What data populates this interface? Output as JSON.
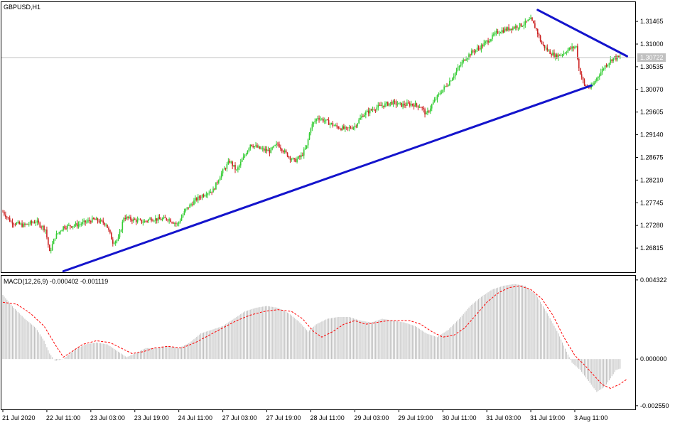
{
  "chart_data": {
    "type": "candlestick",
    "symbol_label": "GBPUSD,H1",
    "current_price": 1.30722,
    "current_price_label": "1.30722",
    "price_axis": {
      "ticks": [
        "1.31465",
        "1.31000",
        "1.30535",
        "1.30070",
        "1.29605",
        "1.29140",
        "1.28675",
        "1.28210",
        "1.27745",
        "1.27280",
        "1.26815"
      ],
      "range": [
        1.2632,
        1.3186
      ]
    },
    "time_axis": {
      "labels": [
        "21 Jul 2020",
        "22 Jul 11:00",
        "23 Jul 03:00",
        "23 Jul 19:00",
        "24 Jul 11:00",
        "27 Jul 03:00",
        "27 Jul 19:00",
        "28 Jul 11:00",
        "29 Jul 03:00",
        "29 Jul 19:00",
        "30 Jul 11:00",
        "31 Jul 03:00",
        "31 Jul 19:00",
        "3 Aug 11:00"
      ]
    },
    "price_path": [
      [
        0,
        1.2756
      ],
      [
        6,
        1.2735
      ],
      [
        15,
        1.2728
      ],
      [
        24,
        1.2736
      ],
      [
        31,
        1.272
      ],
      [
        34,
        1.2672
      ],
      [
        38,
        1.2705
      ],
      [
        44,
        1.2725
      ],
      [
        55,
        1.273
      ],
      [
        66,
        1.274
      ],
      [
        75,
        1.2732
      ],
      [
        80,
        1.2694
      ],
      [
        84,
        1.27
      ],
      [
        88,
        1.2745
      ],
      [
        94,
        1.274
      ],
      [
        102,
        1.2735
      ],
      [
        108,
        1.2742
      ],
      [
        114,
        1.274
      ],
      [
        120,
        1.2742
      ],
      [
        127,
        1.273
      ],
      [
        133,
        1.276
      ],
      [
        140,
        1.278
      ],
      [
        148,
        1.2795
      ],
      [
        153,
        1.28
      ],
      [
        158,
        1.283
      ],
      [
        165,
        1.286
      ],
      [
        170,
        1.284
      ],
      [
        176,
        1.2872
      ],
      [
        180,
        1.2895
      ],
      [
        187,
        1.2885
      ],
      [
        194,
        1.288
      ],
      [
        200,
        1.2895
      ],
      [
        206,
        1.2875
      ],
      [
        212,
        1.286
      ],
      [
        217,
        1.287
      ],
      [
        221,
        1.289
      ],
      [
        224,
        1.293
      ],
      [
        229,
        1.295
      ],
      [
        236,
        1.294
      ],
      [
        243,
        1.293
      ],
      [
        250,
        1.2925
      ],
      [
        256,
        1.2932
      ],
      [
        262,
        1.2955
      ],
      [
        270,
        1.2968
      ],
      [
        277,
        1.2975
      ],
      [
        283,
        1.298
      ],
      [
        290,
        1.2975
      ],
      [
        297,
        1.2977
      ],
      [
        304,
        1.2972
      ],
      [
        308,
        1.2955
      ],
      [
        312,
        1.2975
      ],
      [
        318,
        1.3
      ],
      [
        324,
        1.302
      ],
      [
        330,
        1.3045
      ],
      [
        336,
        1.307
      ],
      [
        342,
        1.3085
      ],
      [
        348,
        1.3095
      ],
      [
        354,
        1.311
      ],
      [
        360,
        1.3125
      ],
      [
        366,
        1.313
      ],
      [
        372,
        1.3135
      ],
      [
        378,
        1.314
      ],
      [
        384,
        1.315
      ],
      [
        388,
        1.313
      ],
      [
        392,
        1.31
      ],
      [
        397,
        1.3085
      ],
      [
        402,
        1.3075
      ],
      [
        407,
        1.308
      ],
      [
        412,
        1.309
      ],
      [
        417,
        1.3095
      ],
      [
        419,
        1.305
      ],
      [
        423,
        1.3015
      ],
      [
        428,
        1.301
      ],
      [
        433,
        1.3035
      ],
      [
        438,
        1.3055
      ],
      [
        444,
        1.3072
      ]
    ],
    "trendlines": [
      {
        "from": [
          44,
          1.2634
        ],
        "to": [
          428,
          1.3015
        ]
      },
      {
        "from": [
          389,
          1.317
        ],
        "to": [
          454,
          1.3075
        ]
      }
    ],
    "indicator": {
      "label": "MACD(12,26,9) -0.000402 -0.001119",
      "ticks": [
        "0.004322",
        "0.000000",
        "-0.002550"
      ],
      "range": [
        -0.00275,
        0.00455
      ],
      "macd_path": [
        [
          0,
          0.0035
        ],
        [
          8,
          0.0028
        ],
        [
          16,
          0.0022
        ],
        [
          24,
          0.0017
        ],
        [
          30,
          0.001
        ],
        [
          34,
          0.0003
        ],
        [
          38,
          -0.0001
        ],
        [
          44,
          0.0
        ],
        [
          52,
          0.0005
        ],
        [
          60,
          0.0008
        ],
        [
          68,
          0.0009
        ],
        [
          76,
          0.0008
        ],
        [
          84,
          0.0004
        ],
        [
          90,
          0.0001
        ],
        [
          96,
          0.0003
        ],
        [
          104,
          0.0006
        ],
        [
          112,
          0.0006
        ],
        [
          120,
          0.0007
        ],
        [
          128,
          0.0006
        ],
        [
          136,
          0.0009
        ],
        [
          144,
          0.0014
        ],
        [
          152,
          0.0016
        ],
        [
          160,
          0.0018
        ],
        [
          168,
          0.0022
        ],
        [
          176,
          0.0026
        ],
        [
          184,
          0.0028
        ],
        [
          192,
          0.0029
        ],
        [
          200,
          0.0028
        ],
        [
          208,
          0.0025
        ],
        [
          216,
          0.002
        ],
        [
          222,
          0.0015
        ],
        [
          228,
          0.0019
        ],
        [
          236,
          0.0022
        ],
        [
          244,
          0.0023
        ],
        [
          252,
          0.0023
        ],
        [
          260,
          0.0021
        ],
        [
          268,
          0.002
        ],
        [
          276,
          0.0022
        ],
        [
          284,
          0.0021
        ],
        [
          292,
          0.002
        ],
        [
          300,
          0.0018
        ],
        [
          308,
          0.0014
        ],
        [
          316,
          0.0012
        ],
        [
          324,
          0.0016
        ],
        [
          332,
          0.0022
        ],
        [
          340,
          0.0029
        ],
        [
          348,
          0.0034
        ],
        [
          356,
          0.0038
        ],
        [
          364,
          0.004
        ],
        [
          372,
          0.0041
        ],
        [
          380,
          0.004
        ],
        [
          388,
          0.0035
        ],
        [
          396,
          0.0025
        ],
        [
          404,
          0.0014
        ],
        [
          410,
          0.0004
        ],
        [
          414,
          -0.0002
        ],
        [
          420,
          -0.0006
        ],
        [
          426,
          -0.0012
        ],
        [
          432,
          -0.0018
        ],
        [
          438,
          -0.0015
        ],
        [
          446,
          -0.0006
        ],
        [
          454,
          -0.0004
        ]
      ],
      "signal_path": [
        [
          0,
          0.0031
        ],
        [
          10,
          0.003
        ],
        [
          20,
          0.0025
        ],
        [
          30,
          0.0018
        ],
        [
          38,
          0.0008
        ],
        [
          44,
          0.0001
        ],
        [
          50,
          0.0004
        ],
        [
          58,
          0.0008
        ],
        [
          68,
          0.001
        ],
        [
          78,
          0.0009
        ],
        [
          86,
          0.0006
        ],
        [
          94,
          0.0003
        ],
        [
          102,
          0.0004
        ],
        [
          110,
          0.0006
        ],
        [
          120,
          0.0007
        ],
        [
          130,
          0.0006
        ],
        [
          140,
          0.0009
        ],
        [
          150,
          0.0013
        ],
        [
          160,
          0.0017
        ],
        [
          170,
          0.0021
        ],
        [
          180,
          0.0024
        ],
        [
          190,
          0.0026
        ],
        [
          200,
          0.0027
        ],
        [
          210,
          0.0026
        ],
        [
          218,
          0.0022
        ],
        [
          226,
          0.0015
        ],
        [
          232,
          0.0012
        ],
        [
          240,
          0.0015
        ],
        [
          248,
          0.0019
        ],
        [
          256,
          0.0021
        ],
        [
          264,
          0.0019
        ],
        [
          272,
          0.002
        ],
        [
          280,
          0.0021
        ],
        [
          288,
          0.0021
        ],
        [
          296,
          0.0021
        ],
        [
          304,
          0.0019
        ],
        [
          312,
          0.0015
        ],
        [
          320,
          0.0012
        ],
        [
          328,
          0.0013
        ],
        [
          336,
          0.0017
        ],
        [
          344,
          0.0024
        ],
        [
          352,
          0.0031
        ],
        [
          360,
          0.0036
        ],
        [
          368,
          0.0039
        ],
        [
          376,
          0.004
        ],
        [
          384,
          0.0038
        ],
        [
          392,
          0.0033
        ],
        [
          400,
          0.0024
        ],
        [
          408,
          0.0012
        ],
        [
          416,
          0.0002
        ],
        [
          424,
          -0.0004
        ],
        [
          430,
          -0.0009
        ],
        [
          436,
          -0.0014
        ],
        [
          442,
          -0.0016
        ],
        [
          448,
          -0.0014
        ],
        [
          454,
          -0.0011
        ]
      ]
    },
    "colors": {
      "up": "#33cc33",
      "down": "#cc2222",
      "trendline": "#1414cc",
      "histogram": "#c0c0c0",
      "signal": "#ff0000",
      "price_line": "#c0c0c0",
      "price_label_bg": "#c0c0c0"
    },
    "grid": false,
    "legend": "top-left"
  }
}
